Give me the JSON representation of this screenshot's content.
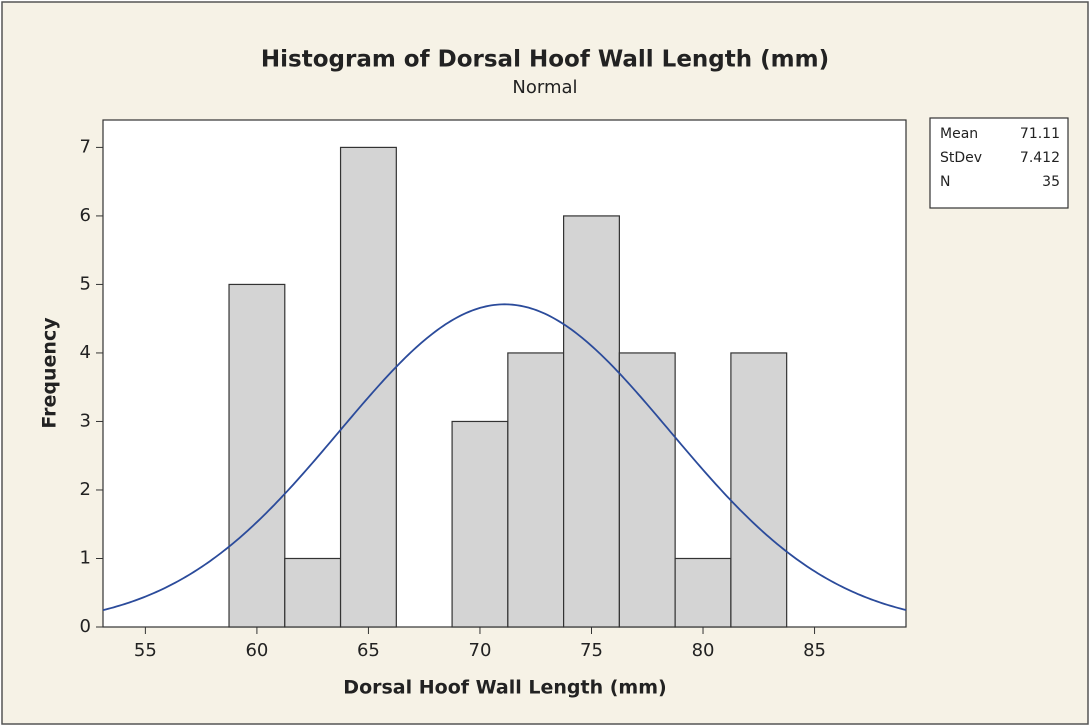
{
  "chart_data": {
    "type": "histogram",
    "title": "Histogram of Dorsal Hoof Wall Length (mm)",
    "subtitle": "Normal",
    "x_label": "Dorsal Hoof Wall Length (mm)",
    "y_label": "Frequency",
    "bins": [
      58.75,
      61.25,
      63.75,
      66.25,
      68.75,
      71.25,
      73.75,
      76.25,
      78.75,
      81.25,
      83.75
    ],
    "values": [
      5,
      1,
      7,
      0,
      3,
      4,
      6,
      4,
      1,
      4
    ],
    "color": "#d4d4d4",
    "curve_color": "#2b4b9b",
    "xlim": [
      53.1,
      89.1
    ],
    "xticks": [
      55,
      60,
      65,
      70,
      75,
      80,
      85
    ],
    "ylim": [
      0,
      7.4
    ],
    "yticks": [
      0,
      1,
      2,
      3,
      4,
      5,
      6,
      7
    ],
    "stats": [
      {
        "name": "Mean",
        "value": 71.11
      },
      {
        "name": "StDev",
        "value": 7.412
      },
      {
        "name": "N",
        "value": 35
      }
    ]
  }
}
